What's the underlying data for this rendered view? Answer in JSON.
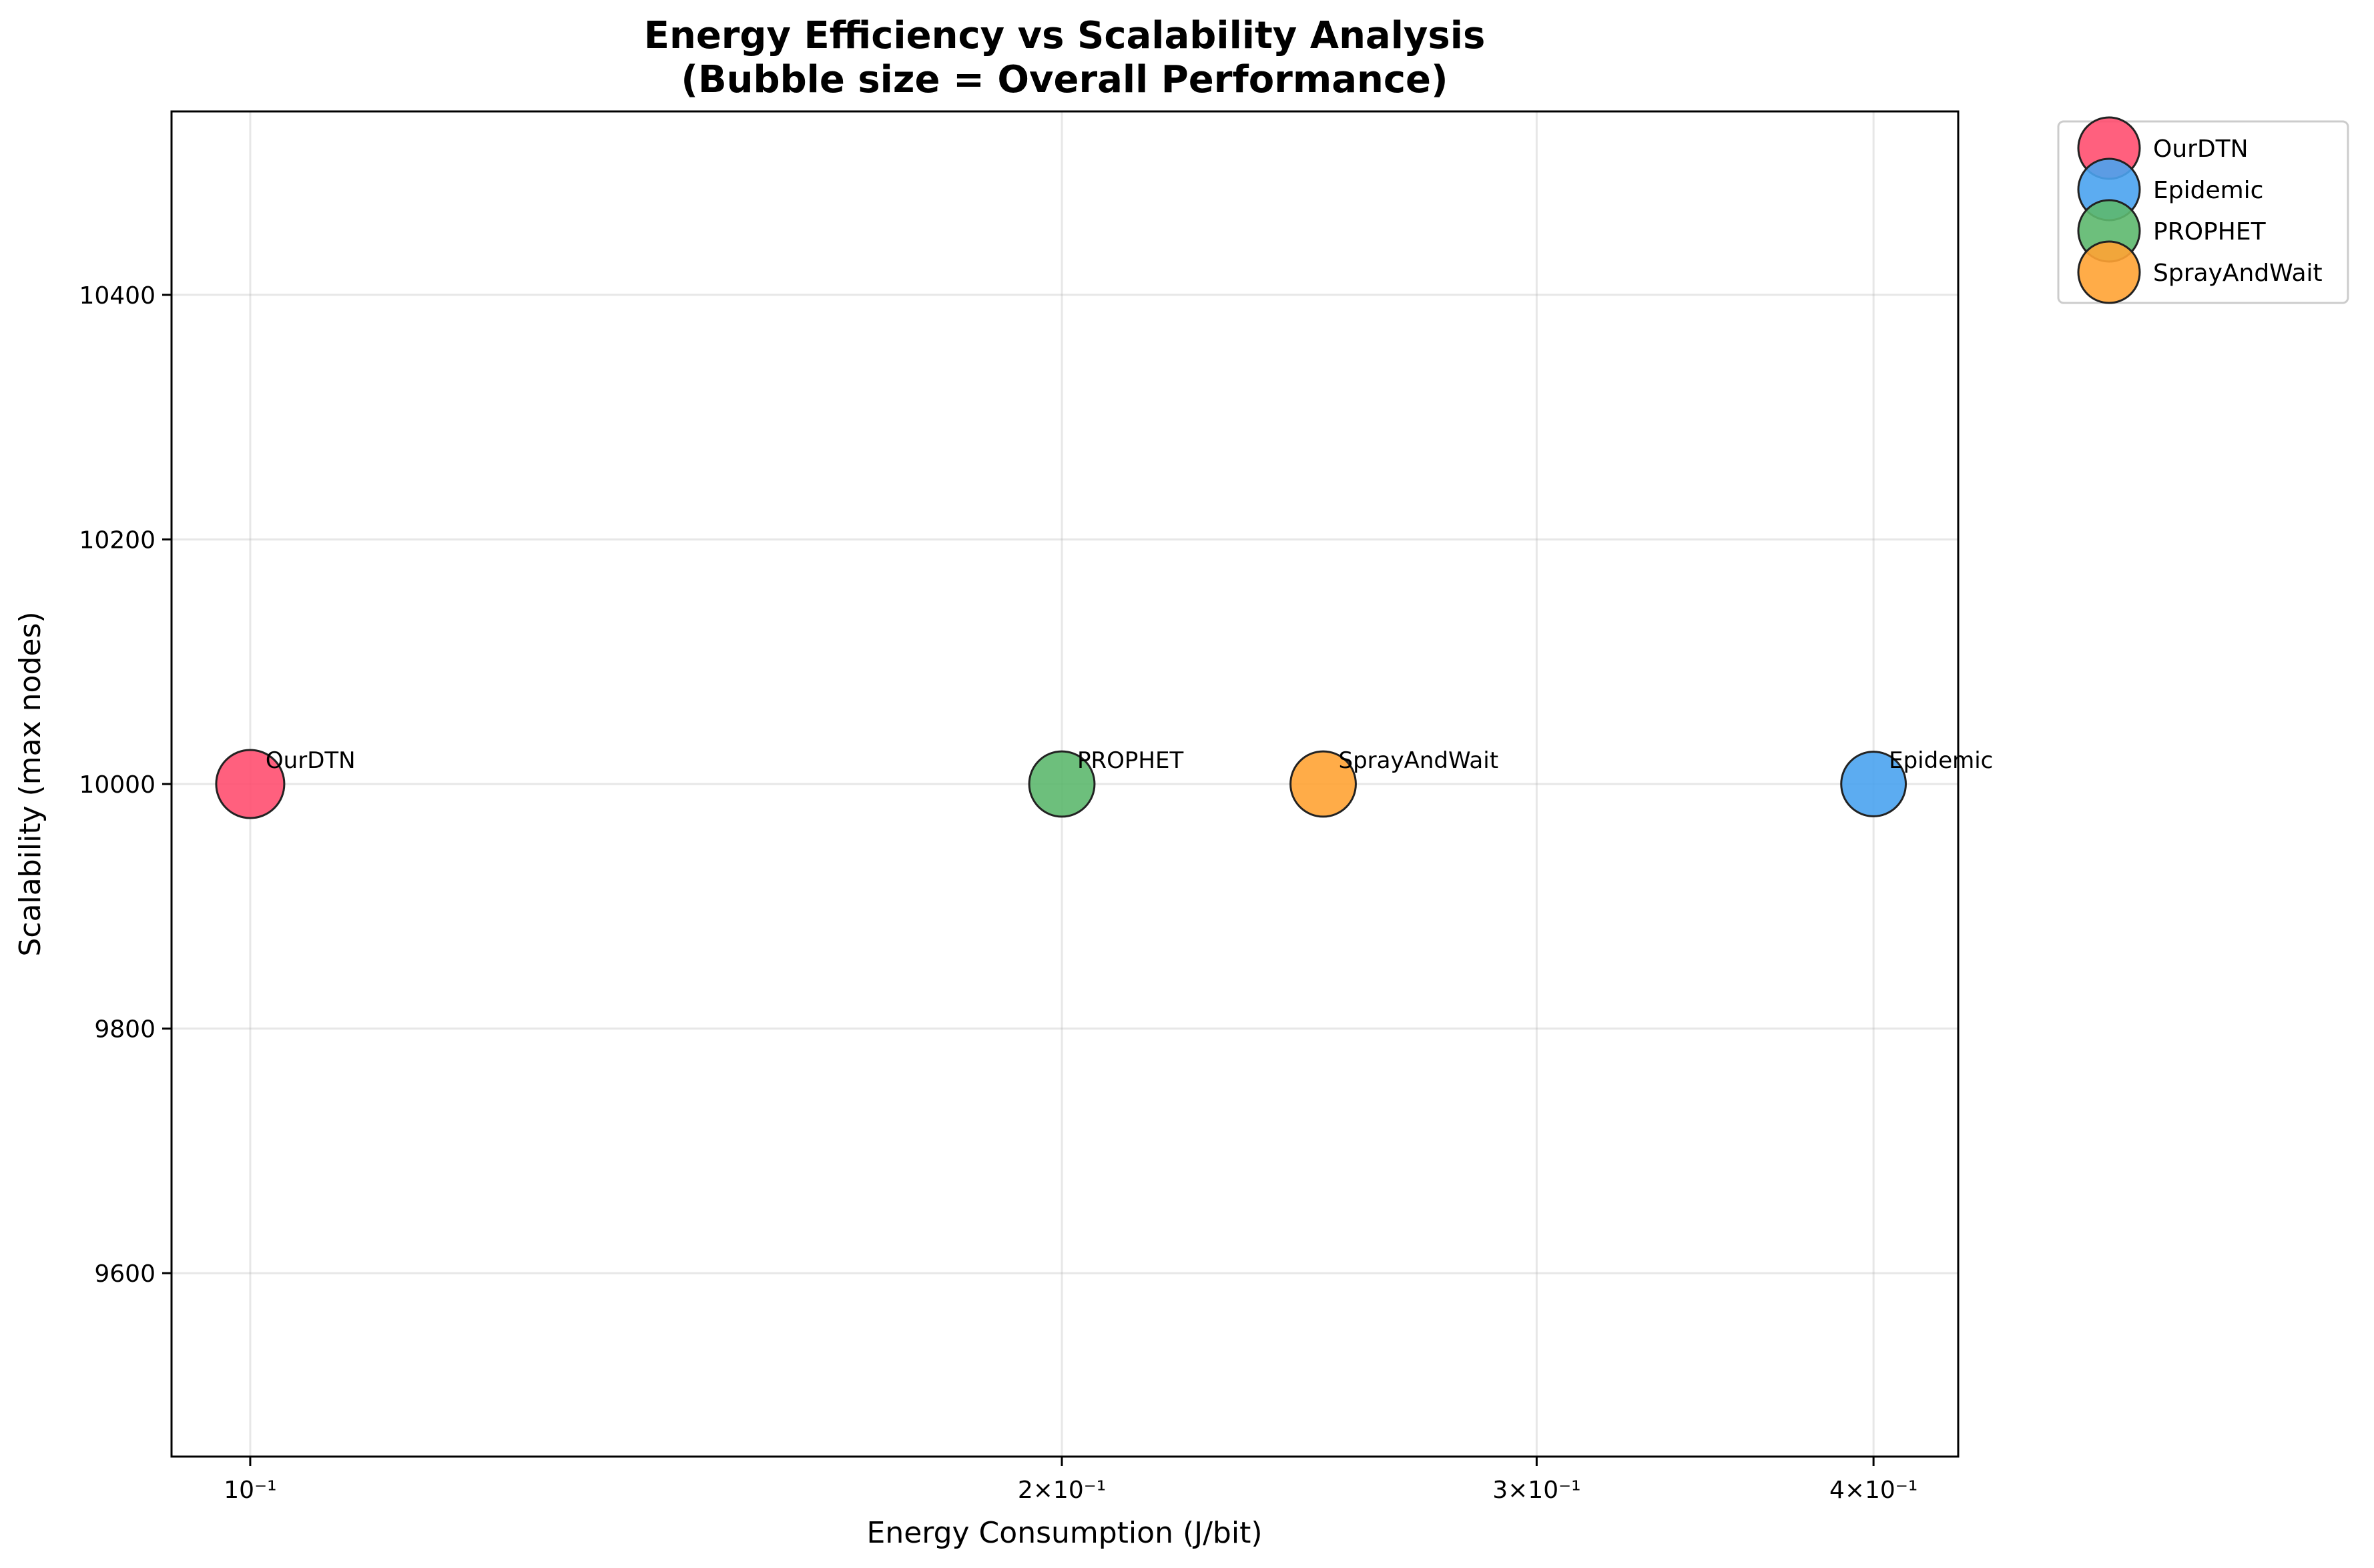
{
  "chart_data": {
    "type": "scatter",
    "title": "Energy Efficiency vs Scalability Analysis",
    "subtitle": "(Bubble size = Overall Performance)",
    "xlabel": "Energy Consumption (J/bit)",
    "ylabel": "Scalability (max nodes)",
    "xscale": "log",
    "xlim": [
      0.0935,
      0.43
    ],
    "ylim": [
      9450,
      10550
    ],
    "x_ticks": [
      {
        "value": 0.1,
        "label": "10⁻¹"
      },
      {
        "value": 0.2,
        "label": "2×10⁻¹"
      },
      {
        "value": 0.3,
        "label": "3×10⁻¹"
      },
      {
        "value": 0.4,
        "label": "4×10⁻¹"
      }
    ],
    "y_ticks": [
      {
        "value": 9600,
        "label": "9600"
      },
      {
        "value": 9800,
        "label": "9800"
      },
      {
        "value": 10000,
        "label": "10000"
      },
      {
        "value": 10200,
        "label": "10200"
      },
      {
        "value": 10400,
        "label": "10400"
      }
    ],
    "grid": true,
    "legend_position": "outside-top-right",
    "series": [
      {
        "name": "OurDTN",
        "x": 0.1,
        "y": 10000,
        "size": 1.0,
        "color": "#FF4F70"
      },
      {
        "name": "Epidemic",
        "x": 0.4,
        "y": 10000,
        "size": 0.9,
        "color": "#4AA3F0"
      },
      {
        "name": "PROPHET",
        "x": 0.2,
        "y": 10000,
        "size": 0.92,
        "color": "#5DB86E"
      },
      {
        "name": "SprayAndWait",
        "x": 0.25,
        "y": 10000,
        "size": 0.92,
        "color": "#FFA334"
      }
    ]
  }
}
